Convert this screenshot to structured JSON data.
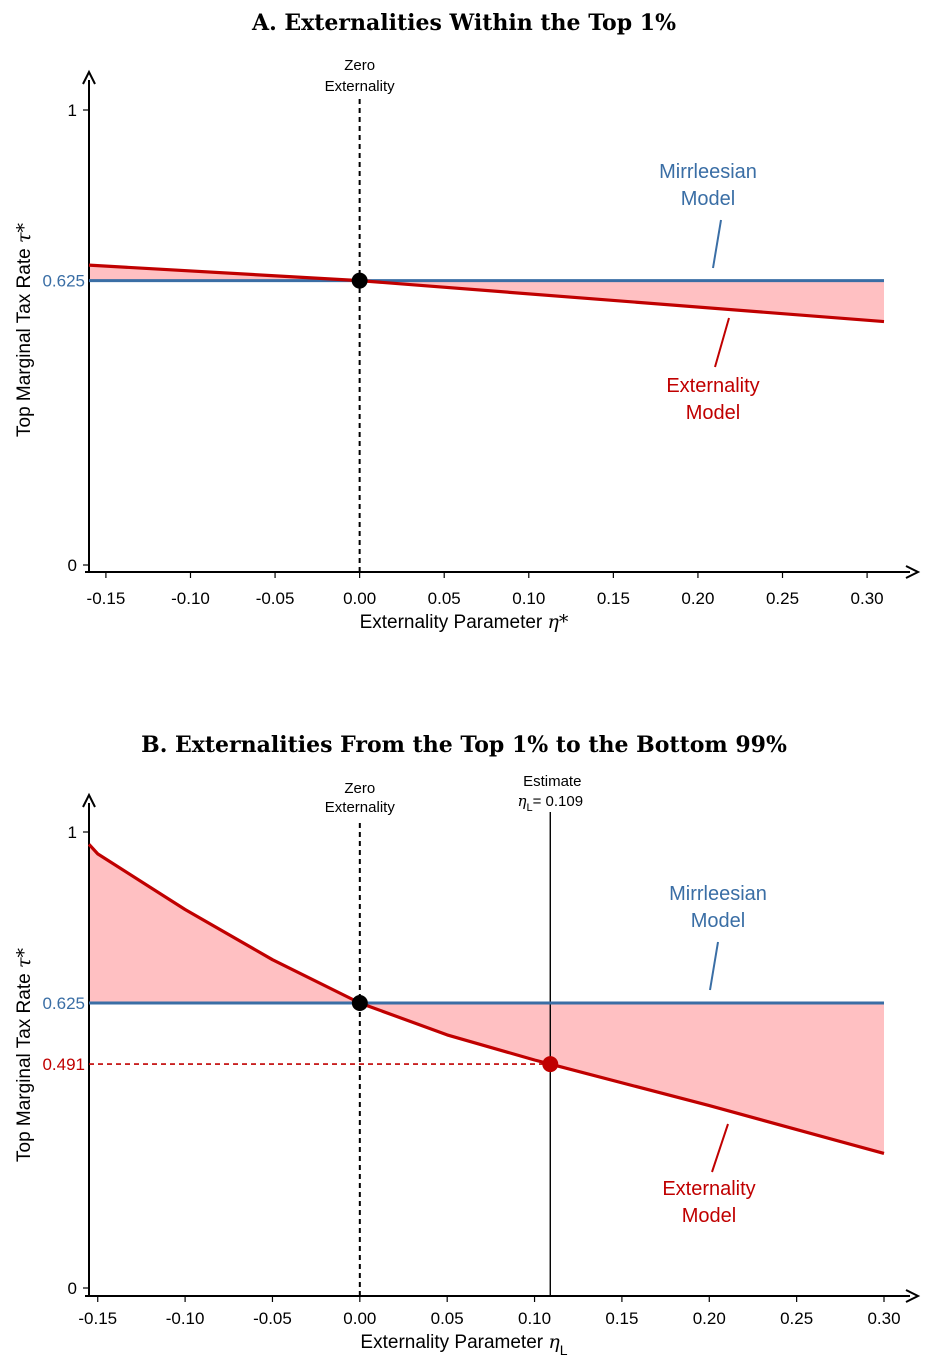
{
  "colors": {
    "mirrleesian": "#3a6ea5",
    "externality": "#c00000",
    "fill": "#ffc0c2",
    "axis": "#000000"
  },
  "chart_data": [
    {
      "type": "line",
      "title": "A. Externalities Within the Top 1%",
      "xlabel": "Externality Parameter",
      "xlabel_symbol": "η*",
      "ylabel": "Top Marginal Tax Rate",
      "ylabel_symbol": "τ*",
      "xlim": [
        -0.16,
        0.31
      ],
      "ylim": [
        0,
        1
      ],
      "xticks": [
        "-0.15",
        "-0.10",
        "-0.05",
        "0.00",
        "0.05",
        "0.10",
        "0.15",
        "0.20",
        "0.25",
        "0.30"
      ],
      "yticks": [
        "0",
        "1"
      ],
      "series": [
        {
          "name": "Mirrleesian Model",
          "x": [
            -0.16,
            0.31
          ],
          "y": [
            0.625,
            0.625
          ]
        },
        {
          "name": "Externality Model",
          "x": [
            -0.16,
            0.0,
            0.31
          ],
          "y": [
            0.659,
            0.625,
            0.535
          ]
        }
      ],
      "annotations": {
        "vline_label_1": "Zero",
        "vline_label_2": "Externality",
        "mirrleesian_label_1": "Mirrleesian",
        "mirrleesian_label_2": "Model",
        "externality_label_1": "Externality",
        "externality_label_2": "Model",
        "y_marker": "0.625",
        "point": {
          "x": 0.0,
          "y": 0.625
        }
      }
    },
    {
      "type": "line",
      "title": "B. Externalities From the Top 1% to the Bottom 99%",
      "xlabel": "Externality Parameter",
      "xlabel_symbol": "η",
      "xlabel_subscript": "L",
      "ylabel": "Top Marginal Tax Rate",
      "ylabel_symbol": "τ*",
      "xlim": [
        -0.155,
        0.3
      ],
      "ylim": [
        0,
        1
      ],
      "xticks": [
        "-0.15",
        "-0.10",
        "-0.05",
        "0.00",
        "0.05",
        "0.10",
        "0.15",
        "0.20",
        "0.25",
        "0.30"
      ],
      "yticks": [
        "0",
        "1"
      ],
      "series": [
        {
          "name": "Mirrleesian Model",
          "x": [
            -0.155,
            0.3
          ],
          "y": [
            0.625,
            0.625
          ]
        },
        {
          "name": "Externality Model",
          "x": [
            -0.155,
            -0.15,
            -0.1,
            -0.05,
            0.0,
            0.05,
            0.1,
            0.109,
            0.2,
            0.3
          ],
          "y": [
            0.973,
            0.952,
            0.83,
            0.72,
            0.625,
            0.555,
            0.5,
            0.491,
            0.4,
            0.295
          ]
        }
      ],
      "annotations": {
        "vline_label_1": "Zero",
        "vline_label_2": "Externality",
        "estimate_label_1": "Estimate",
        "estimate_symbol": "η",
        "estimate_subscript": "L",
        "estimate_value": "= 0.109",
        "mirrleesian_label_1": "Mirrleesian",
        "mirrleesian_label_2": "Model",
        "externality_label_1": "Externality",
        "externality_label_2": "Model",
        "y_marker_1": "0.625",
        "y_marker_2": "0.491",
        "point_zero": {
          "x": 0.0,
          "y": 0.625
        },
        "point_estimate": {
          "x": 0.109,
          "y": 0.491
        }
      }
    }
  ]
}
